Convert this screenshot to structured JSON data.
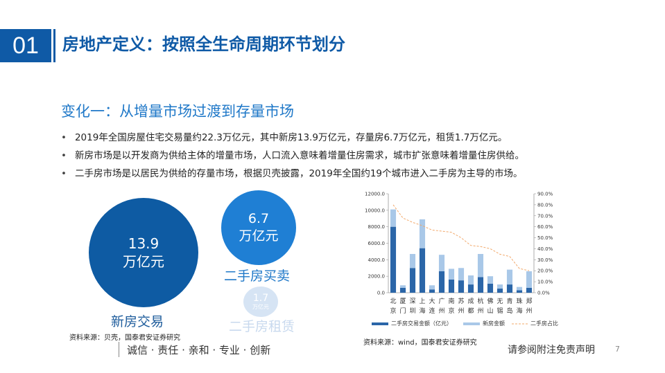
{
  "header": {
    "number": "01",
    "title": "房地产定义：按照全生命周期环节划分"
  },
  "section": {
    "subtitle": "变化一：从增量市场过渡到存量市场",
    "bullets": [
      "2019年全国房屋住宅交易量约22.3万亿元，其中新房13.9万亿元，存量房6.7万亿元，租赁1.7万亿元。",
      "新房市场是以开发商为供给主体的增量市场，人口流入意味着增量住房需求，城市扩张意味着增量住房供给。",
      "二手房市场是以居民为供给的存量市场，根据贝壳披露，2019年全国约19个城市进入二手房为主导的市场。"
    ]
  },
  "circles": {
    "new": {
      "value": "13.9",
      "unit": "万亿元",
      "label": "新房交易"
    },
    "second": {
      "value": "6.7",
      "unit": "万亿元",
      "label": "二手房买卖"
    },
    "rent": {
      "value": "1.7",
      "unit": "万亿元",
      "label": "二手房租赁"
    }
  },
  "sources": {
    "left": "资料来源：贝壳，国泰君安证券研究",
    "right": "资料来源：wind，国泰君安证券研究"
  },
  "footer": {
    "slogan": "诚信 · 责任 · 亲和 · 专业 · 创新",
    "disclaimer": "请参阅附注免责声明",
    "page": "7"
  },
  "colors": {
    "brand": "#0f5aa6",
    "accent": "#1f78c8",
    "series_second": "#2b66a8",
    "series_new": "#a9c8e8",
    "series_ratio": "#f2a86a"
  },
  "chart_data": {
    "type": "bar",
    "stacked": true,
    "categories": [
      "北京",
      "厦门",
      "深圳",
      "上海",
      "大连",
      "广州",
      "南京",
      "苏州",
      "成都",
      "杭州",
      "佛山",
      "无锡",
      "青岛",
      "珠海",
      "郑州"
    ],
    "category_chars": [
      [
        "北",
        "京"
      ],
      [
        "厦",
        "门"
      ],
      [
        "深",
        "圳"
      ],
      [
        "上",
        "海"
      ],
      [
        "大",
        "连"
      ],
      [
        "广",
        "州"
      ],
      [
        "南",
        "京"
      ],
      [
        "苏",
        "州"
      ],
      [
        "成",
        "都"
      ],
      [
        "杭",
        "州"
      ],
      [
        "佛",
        "山"
      ],
      [
        "无",
        "锡"
      ],
      [
        "青",
        "岛"
      ],
      [
        "珠",
        "海"
      ],
      [
        "郑",
        "州"
      ]
    ],
    "series": [
      {
        "name": "二手房交易金额（亿元）",
        "type": "bar",
        "axis": "left",
        "values": [
          8000,
          600,
          3000,
          5400,
          400,
          2600,
          1600,
          1500,
          1000,
          1900,
          1100,
          500,
          1000,
          300,
          600
        ]
      },
      {
        "name": "新房金额",
        "type": "bar",
        "axis": "left",
        "values": [
          2100,
          300,
          1700,
          3500,
          500,
          2000,
          1300,
          1500,
          1100,
          2800,
          900,
          500,
          1800,
          400,
          2000
        ]
      },
      {
        "name": "二手房占比",
        "type": "line",
        "axis": "right",
        "dashed": true,
        "values": [
          0.8,
          0.68,
          0.64,
          0.61,
          0.57,
          0.56,
          0.55,
          0.5,
          0.43,
          0.42,
          0.4,
          0.35,
          0.33,
          0.22,
          0.2
        ]
      }
    ],
    "ylim": [
      0,
      12000
    ],
    "yticks": [
      "0.0",
      "2000.0",
      "4000.0",
      "6000.0",
      "8000.0",
      "10000.0",
      "12000.0"
    ],
    "y2lim": [
      0,
      0.9
    ],
    "y2ticks": [
      "0.0%",
      "10.0%",
      "20.0%",
      "30.0%",
      "40.0%",
      "50.0%",
      "60.0%",
      "70.0%",
      "80.0%",
      "90.0%"
    ],
    "legend_position": "bottom",
    "grid": false
  }
}
